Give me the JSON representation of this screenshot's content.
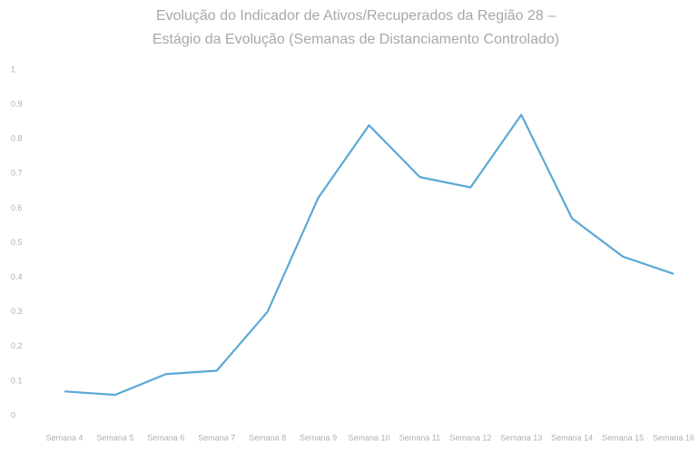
{
  "chart_data": {
    "type": "line",
    "title": "Evolução do Indicador de Ativos/Recuperados da Região 28 –",
    "subtitle": "Estágio da Evolução (Semanas de Distanciamento Controlado)",
    "categories": [
      "Semana 4",
      "Semana 5",
      "Semana 6",
      "Semana 7",
      "Semana 8",
      "Semana 9",
      "Semana 10",
      "Semana 11",
      "Semana 12",
      "Semana 13",
      "Semana 14",
      "Semana 15",
      "Semana 16"
    ],
    "values": [
      0.07,
      0.06,
      0.12,
      0.13,
      0.3,
      0.63,
      0.84,
      0.69,
      0.66,
      0.87,
      0.57,
      0.46,
      0.41
    ],
    "color": "#5ba8d6",
    "ylim": [
      0,
      1
    ],
    "yticks": [
      0,
      0.1,
      0.2,
      0.3,
      0.4,
      0.5,
      0.6,
      0.7,
      0.8,
      0.9,
      1
    ],
    "grid": false
  }
}
